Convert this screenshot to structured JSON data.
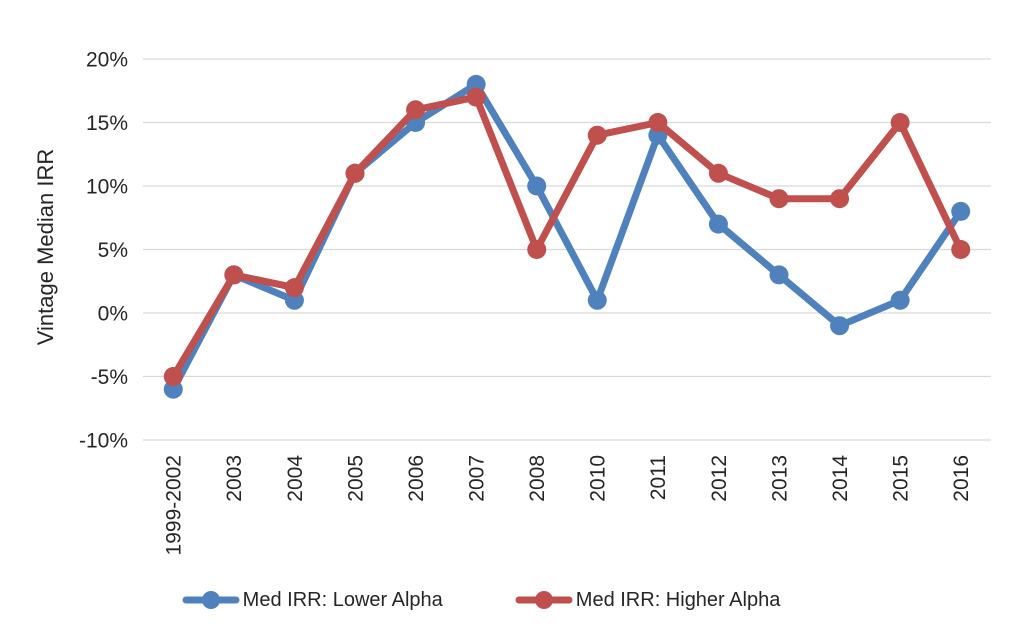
{
  "chart_data": {
    "type": "line",
    "title": "",
    "xlabel": "",
    "ylabel": "Vintage Median IRR",
    "categories": [
      "1999-2002",
      "2003",
      "2004",
      "2005",
      "2006",
      "2007",
      "2008",
      "2010",
      "2011",
      "2012",
      "2013",
      "2014",
      "2015",
      "2016"
    ],
    "series": [
      {
        "name": "Med IRR: Lower Alpha",
        "color": "#4F81BD",
        "values": [
          -6,
          3,
          1,
          11,
          15,
          18,
          10,
          1,
          14,
          7,
          3,
          -1,
          1,
          8
        ]
      },
      {
        "name": "Med IRR: Higher Alpha",
        "color": "#C0504D",
        "values": [
          -5,
          3,
          2,
          11,
          16,
          17,
          5,
          14,
          15,
          11,
          9,
          9,
          15,
          5
        ]
      }
    ],
    "ylim": [
      -10,
      20
    ],
    "ytick_step": 5,
    "ytick_labels": [
      "20%",
      "15%",
      "10%",
      "5%",
      "0%",
      "-5%",
      "-10%"
    ],
    "grid": true,
    "legend_position": "bottom",
    "gridline_color": "#D9D9D9",
    "text_color": "#262626"
  }
}
